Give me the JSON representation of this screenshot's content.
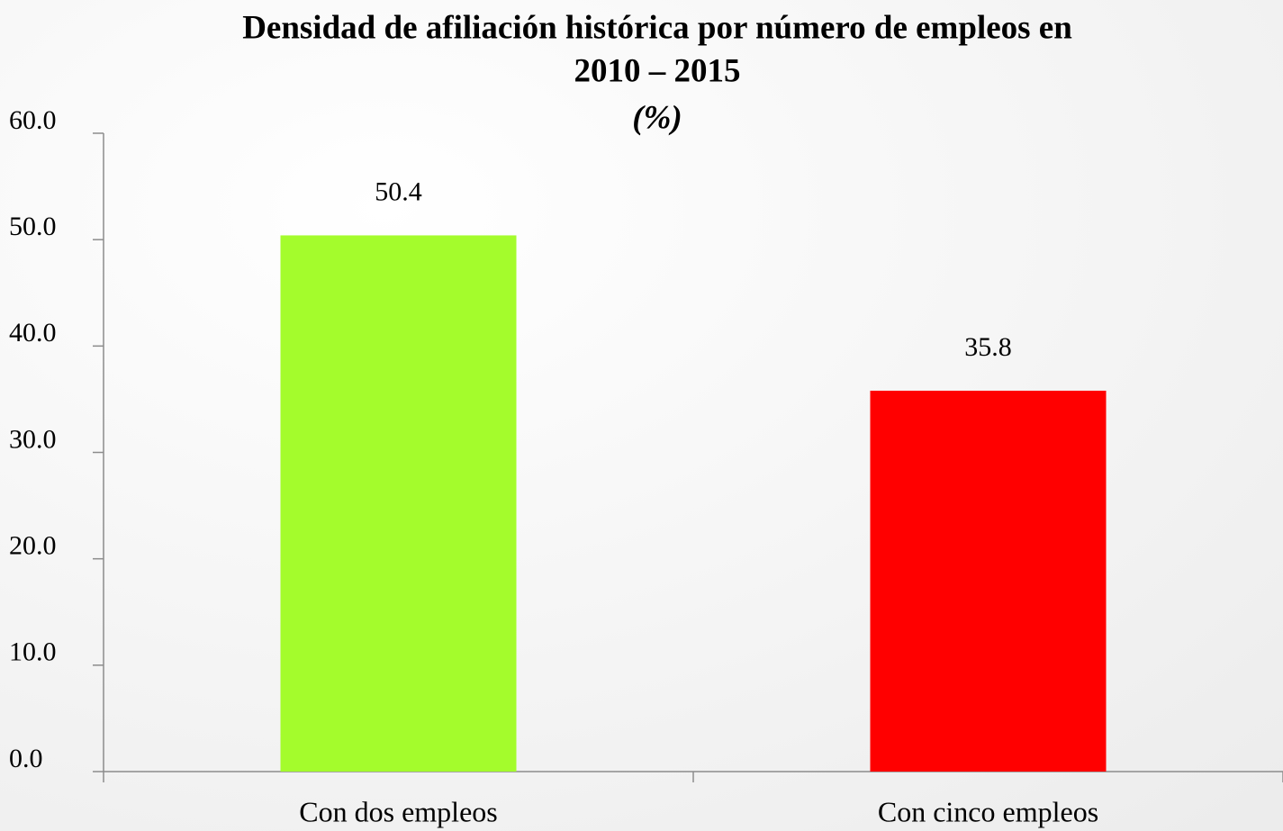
{
  "chart_data": {
    "type": "bar",
    "title": [
      "Densidad de afiliación histórica por número de empleos en",
      "2010 – 2015"
    ],
    "subtitle": "(%)",
    "categories": [
      "Con dos empleos",
      "Con cinco empleos"
    ],
    "values": [
      50.4,
      35.8
    ],
    "colors": [
      "#a4fc2c",
      "#ff0000"
    ],
    "ylim": [
      0,
      60
    ],
    "yticks": [
      {
        "value": 0,
        "label": "0.0"
      },
      {
        "value": 10,
        "label": "10.0"
      },
      {
        "value": 20,
        "label": "20.0"
      },
      {
        "value": 30,
        "label": "30.0"
      },
      {
        "value": 40,
        "label": "40.0"
      },
      {
        "value": 50,
        "label": "50.0"
      },
      {
        "value": 60,
        "label": "60.0"
      }
    ],
    "grid": false
  }
}
